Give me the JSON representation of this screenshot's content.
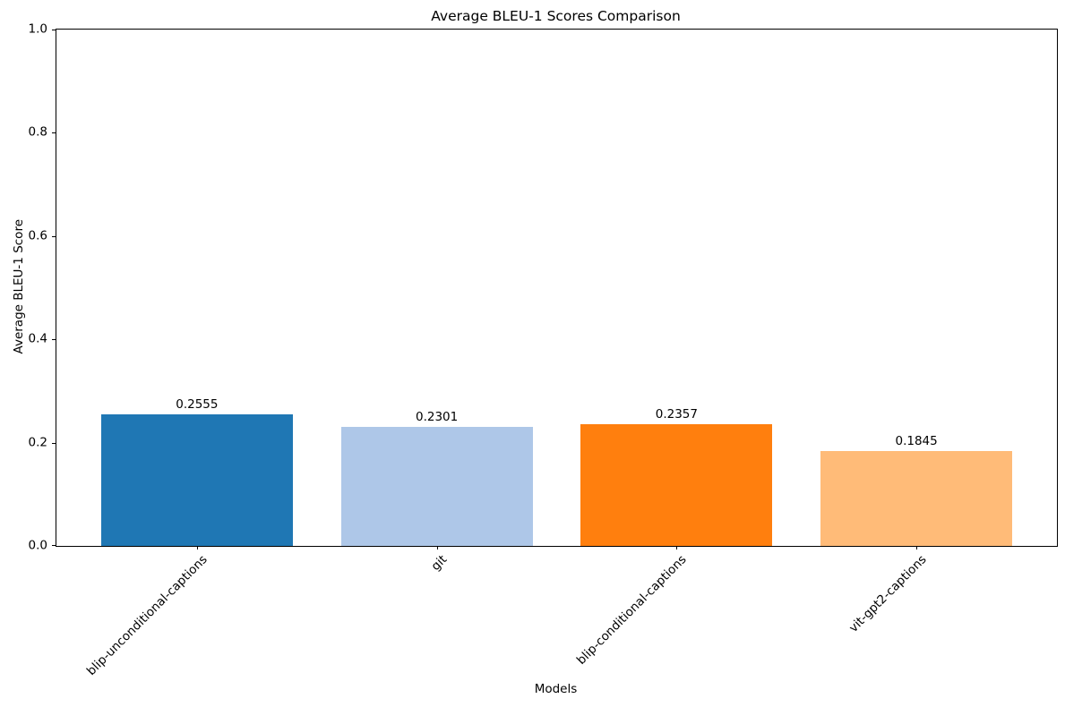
{
  "chart_data": {
    "type": "bar",
    "title": "Average BLEU-1 Scores Comparison",
    "xlabel": "Models",
    "ylabel": "Average BLEU-1 Score",
    "categories": [
      "blip-unconditional-captions",
      "git",
      "blip-conditional-captions",
      "vit-gpt2-captions"
    ],
    "values": [
      0.2555,
      0.2301,
      0.2357,
      0.1845
    ],
    "value_labels": [
      "0.2555",
      "0.2301",
      "0.2357",
      "0.1845"
    ],
    "bar_colors": [
      "#1f77b4",
      "#aec7e8",
      "#ff7f0e",
      "#ffbb78"
    ],
    "ylim": [
      0.0,
      1.0
    ],
    "yticks": [
      0.0,
      0.2,
      0.4,
      0.6,
      0.8,
      1.0
    ],
    "ytick_labels": [
      "0.0",
      "0.2",
      "0.4",
      "0.6",
      "0.8",
      "1.0"
    ],
    "xtick_rotation_deg": 45,
    "grid": false,
    "legend": null,
    "spine_color": "#000000",
    "background_color": "#ffffff",
    "text_color": "#000000"
  }
}
